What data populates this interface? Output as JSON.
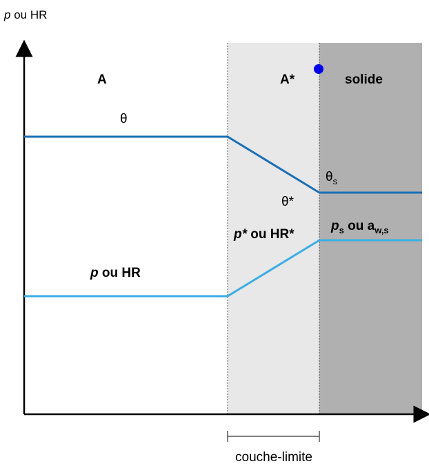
{
  "y_axis_label": {
    "var": "p",
    "rest": " ou HR"
  },
  "zones": {
    "bulk": "A",
    "boundary": "A*",
    "solid": "solide"
  },
  "interface_marker_color": "#0000ee",
  "curves": {
    "temperature": {
      "label_bulk": "θ",
      "label_interface": "θ*",
      "label_solid": "θ",
      "label_solid_sub": "s",
      "color": "#1a6fb5"
    },
    "humidity": {
      "label_bulk_var": "p",
      "label_bulk_rest": " ou HR",
      "label_interface_var": "p*",
      "label_interface_rest": " ou HR*",
      "label_solid_var": "p",
      "label_solid_var_sub": "s",
      "label_solid_mid": " ou a",
      "label_solid_sub": "w,s",
      "color": "#3aaee4"
    }
  },
  "bracket_label": "couche-limite",
  "colors": {
    "boundary_fill": "#e8e8e8",
    "solid_fill": "#b0b0b0"
  }
}
